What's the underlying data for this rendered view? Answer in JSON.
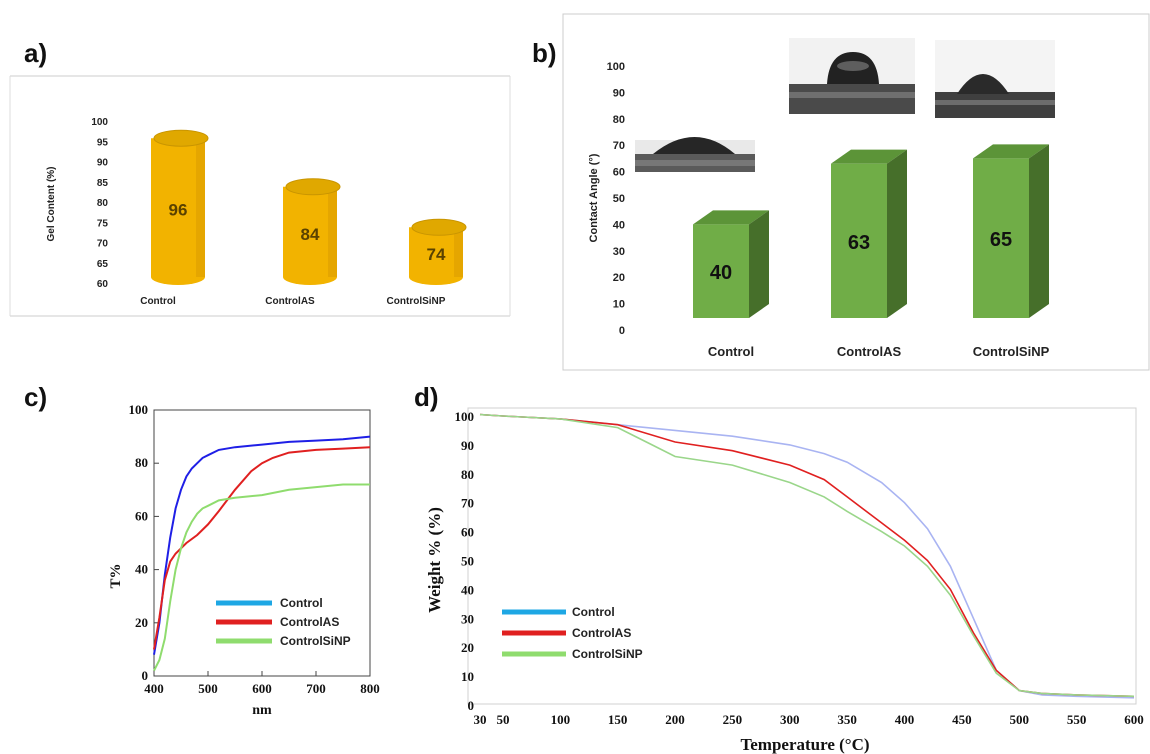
{
  "panels": {
    "a": "a)",
    "b": "b)",
    "c": "c)",
    "d": "d)"
  },
  "colors": {
    "gold": "#f2b300",
    "green": "#70ad47",
    "blue": "#1f1fe6",
    "red": "#e02020",
    "lightgreen": "#8fdc6e",
    "legend_blue": "#1ea7e4"
  },
  "chart_data": [
    {
      "panel": "a",
      "type": "bar",
      "ylabel": "Gel Content (%)",
      "ylim": [
        60,
        100
      ],
      "yticks": [
        60,
        65,
        70,
        75,
        80,
        85,
        90,
        95,
        100
      ],
      "categories": [
        "Control",
        "ControlAS",
        "ControlSiNP"
      ],
      "values": [
        96,
        84,
        74
      ],
      "value_labels": [
        "96",
        "84",
        "74"
      ]
    },
    {
      "panel": "b",
      "type": "bar",
      "ylabel": "Contact Angle (°)",
      "ylim": [
        0,
        100
      ],
      "yticks": [
        0,
        10,
        20,
        30,
        40,
        50,
        60,
        70,
        80,
        90,
        100
      ],
      "categories": [
        "Control",
        "ControlAS",
        "ControlSiNP"
      ],
      "values": [
        40,
        63,
        65
      ],
      "value_labels": [
        "40",
        "63",
        "65"
      ]
    },
    {
      "panel": "c",
      "type": "line",
      "ylabel": "T%",
      "xlabel": "nm",
      "xlim": [
        400,
        800
      ],
      "ylim": [
        0,
        100
      ],
      "xticks": [
        400,
        500,
        600,
        700,
        800
      ],
      "yticks": [
        0,
        20,
        40,
        60,
        80,
        100
      ],
      "legend": [
        "Control",
        "ControlAS",
        "ControlSiNP"
      ],
      "legend_position": "lower-right",
      "series": [
        {
          "name": "Control",
          "color": "blue",
          "x": [
            400,
            410,
            420,
            430,
            440,
            450,
            460,
            470,
            480,
            490,
            500,
            520,
            550,
            600,
            650,
            700,
            750,
            800
          ],
          "y": [
            8,
            20,
            38,
            52,
            63,
            70,
            75,
            78,
            80,
            82,
            83,
            85,
            86,
            87,
            88,
            88.5,
            89,
            90
          ]
        },
        {
          "name": "ControlAS",
          "color": "red",
          "x": [
            400,
            410,
            420,
            430,
            440,
            450,
            460,
            480,
            500,
            520,
            550,
            580,
            600,
            620,
            650,
            700,
            750,
            800
          ],
          "y": [
            10,
            22,
            36,
            43,
            46,
            48,
            50,
            53,
            57,
            62,
            70,
            77,
            80,
            82,
            84,
            85,
            85.5,
            86
          ]
        },
        {
          "name": "ControlSiNP",
          "color": "lightgreen",
          "x": [
            400,
            410,
            420,
            430,
            440,
            450,
            460,
            470,
            480,
            490,
            500,
            520,
            550,
            600,
            650,
            700,
            750,
            800
          ],
          "y": [
            2,
            6,
            14,
            28,
            40,
            48,
            54,
            58,
            61,
            63,
            64,
            66,
            67,
            68,
            70,
            71,
            72,
            72
          ]
        }
      ]
    },
    {
      "panel": "d",
      "type": "line",
      "ylabel": "Weight % (%)",
      "xlabel": "Temperature (°C)",
      "xlim": [
        30,
        600
      ],
      "ylim": [
        0,
        100
      ],
      "xticks": [
        30,
        50,
        100,
        150,
        200,
        250,
        300,
        350,
        400,
        450,
        500,
        550,
        600
      ],
      "yticks": [
        0,
        10,
        20,
        30,
        40,
        50,
        60,
        70,
        80,
        90,
        100
      ],
      "legend": [
        "Control",
        "ControlAS",
        "ControlSiNP"
      ],
      "legend_position": "lower-left",
      "series": [
        {
          "name": "Control",
          "color": "bluepale",
          "x": [
            30,
            50,
            100,
            150,
            200,
            250,
            300,
            330,
            350,
            380,
            400,
            420,
            440,
            460,
            480,
            500,
            520,
            550,
            600
          ],
          "y": [
            100.5,
            100,
            99,
            97,
            95,
            93,
            90,
            87,
            84,
            77,
            70,
            61,
            48,
            30,
            12,
            5,
            3.5,
            3,
            2.5
          ]
        },
        {
          "name": "ControlAS",
          "color": "red",
          "x": [
            30,
            50,
            100,
            150,
            200,
            250,
            300,
            330,
            350,
            380,
            400,
            420,
            440,
            460,
            480,
            500,
            520,
            550,
            600
          ],
          "y": [
            100.5,
            100,
            99,
            97,
            91,
            88,
            83,
            78,
            72,
            63,
            57,
            50,
            40,
            25,
            12,
            5,
            4,
            3.5,
            3
          ]
        },
        {
          "name": "ControlSiNP",
          "color": "greenpale",
          "x": [
            30,
            50,
            100,
            150,
            180,
            200,
            250,
            300,
            330,
            350,
            380,
            400,
            420,
            440,
            460,
            480,
            500,
            520,
            550,
            600
          ],
          "y": [
            100.5,
            100,
            99,
            96,
            90,
            86,
            83,
            77,
            72,
            67,
            60,
            55,
            48,
            38,
            24,
            11,
            5,
            4,
            3.5,
            3
          ]
        }
      ]
    }
  ]
}
